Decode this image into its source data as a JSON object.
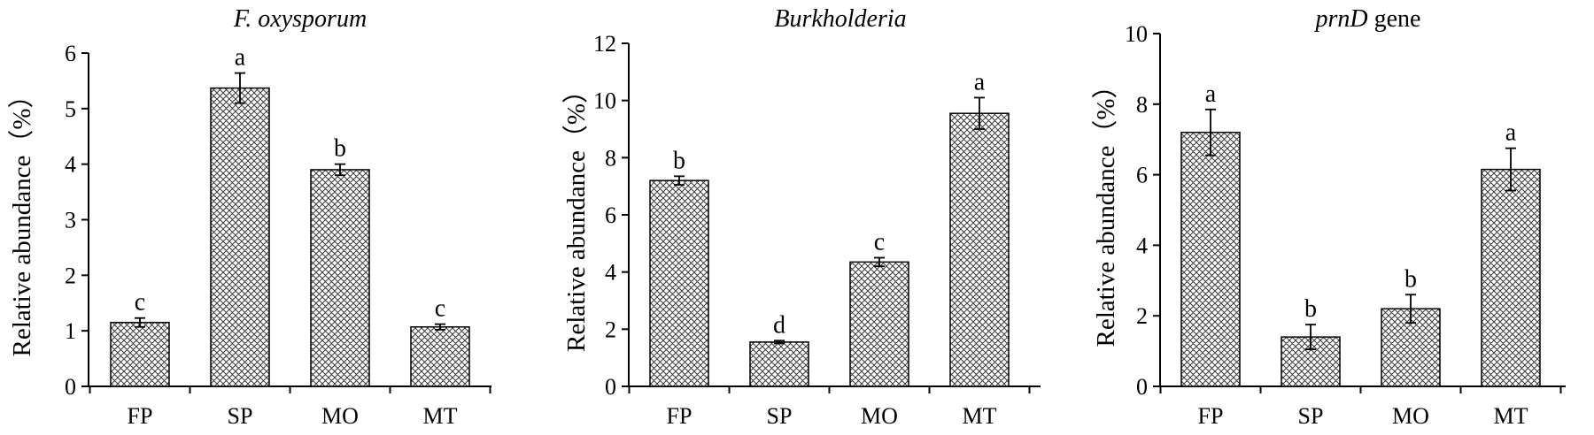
{
  "chart_data": [
    {
      "type": "bar",
      "title_italic": "F. oxysporum",
      "title_plain": "",
      "ylabel": "Relative abundance（%）",
      "categories": [
        "FP",
        "SP",
        "MO",
        "MT"
      ],
      "values": [
        1.15,
        5.37,
        3.9,
        1.07
      ],
      "errors": [
        0.08,
        0.27,
        0.1,
        0.05
      ],
      "significance": [
        "c",
        "a",
        "b",
        "c"
      ],
      "ylim": [
        0,
        6
      ],
      "yticks": [
        0,
        1,
        2,
        3,
        4,
        5,
        6
      ],
      "grid": false,
      "legend": "none",
      "bar_pattern": "crosshatch"
    },
    {
      "type": "bar",
      "title_italic": "Burkholderia",
      "title_plain": "",
      "ylabel": "Relative abundance（%）",
      "categories": [
        "FP",
        "SP",
        "MO",
        "MT"
      ],
      "values": [
        7.2,
        1.55,
        4.35,
        9.55
      ],
      "errors": [
        0.15,
        0.05,
        0.15,
        0.55
      ],
      "significance": [
        "b",
        "d",
        "c",
        "a"
      ],
      "ylim": [
        0,
        12
      ],
      "yticks": [
        0,
        2,
        4,
        6,
        8,
        10,
        12
      ],
      "grid": false,
      "legend": "none",
      "bar_pattern": "crosshatch"
    },
    {
      "type": "bar",
      "title_italic": "prnD",
      "title_plain": " gene",
      "ylabel": "Relative abundance（%）",
      "categories": [
        "FP",
        "SP",
        "MO",
        "MT"
      ],
      "values": [
        7.2,
        1.4,
        2.2,
        6.15
      ],
      "errors": [
        0.65,
        0.35,
        0.4,
        0.6
      ],
      "significance": [
        "a",
        "b",
        "b",
        "a"
      ],
      "ylim": [
        0,
        10
      ],
      "yticks": [
        0,
        2,
        4,
        6,
        8,
        10
      ],
      "grid": false,
      "legend": "none",
      "bar_pattern": "crosshatch"
    }
  ]
}
